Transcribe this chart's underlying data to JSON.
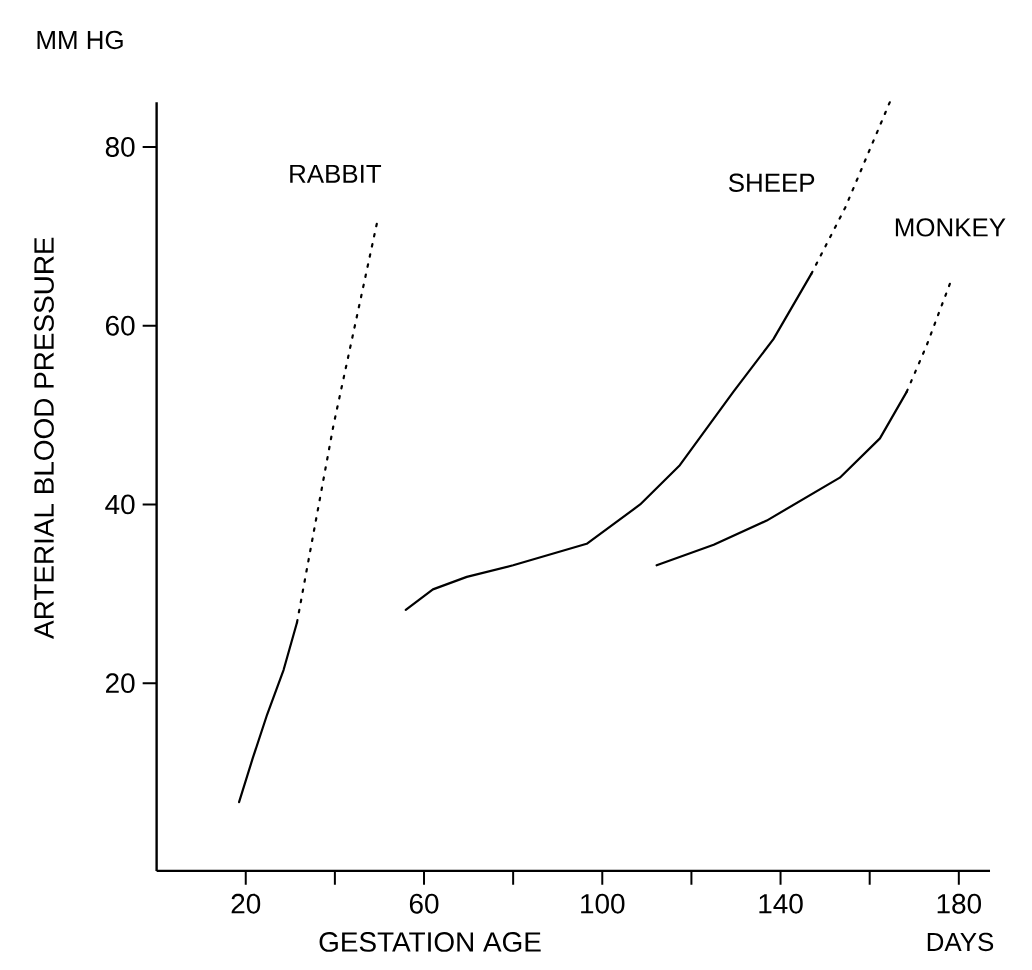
{
  "chart_data": {
    "type": "line",
    "xlabel": "GESTATION AGE",
    "ylabel": "ARTERIAL BLOOD PRESSURE",
    "annotations": [
      "MM HG",
      "DAYS"
    ],
    "xlim": [
      0,
      187
    ],
    "ylim": [
      -1,
      85
    ],
    "xticks": [
      {
        "value": 20,
        "label": "20"
      },
      {
        "value": 40,
        "label": null
      },
      {
        "value": 60,
        "label": "60"
      },
      {
        "value": 80,
        "label": null
      },
      {
        "value": 100,
        "label": "100"
      },
      {
        "value": 120,
        "label": null
      },
      {
        "value": 140,
        "label": "140"
      },
      {
        "value": 160,
        "label": null
      },
      {
        "value": 180,
        "label": "180"
      }
    ],
    "yticks": [
      20,
      40,
      60,
      80
    ],
    "grid": false,
    "series": [
      {
        "color": "#000000",
        "line_style": "solid",
        "x": [
          18.5,
          21.5,
          24.8,
          28.5,
          31.5
        ],
        "values": [
          6.7,
          11.5,
          16.5,
          21.5,
          26.8
        ]
      },
      {
        "name": "RABBIT",
        "color": "#000000",
        "line_style": "dotted",
        "x": [
          31.5,
          39.7,
          49.7
        ],
        "values": [
          26.8,
          48.9,
          72.1
        ]
      },
      {
        "color": "#000000",
        "line_style": "solid",
        "x": [
          55.9,
          62,
          69.6,
          80,
          96.5,
          108.5,
          117.4,
          129.4,
          138.4,
          146.9
        ],
        "values": [
          28.2,
          30.5,
          31.9,
          33.2,
          35.6,
          40.0,
          44.4,
          52.6,
          58.5,
          65.8
        ]
      },
      {
        "name": "SHEEP",
        "color": "#000000",
        "line_style": "dotted",
        "x": [
          146.9,
          154.5,
          164.5
        ],
        "values": [
          65.8,
          73.2,
          85
        ]
      },
      {
        "color": "#000000",
        "line_style": "solid",
        "x": [
          112.2,
          125,
          136.9,
          153.3,
          162.3,
          168.3
        ],
        "values": [
          33.2,
          35.5,
          38.2,
          43.0,
          47.4,
          52.6
        ]
      },
      {
        "name": "MONKEY",
        "color": "#000000",
        "line_style": "dotted",
        "x": [
          168.3,
          172.7,
          178.3
        ],
        "values": [
          52.6,
          57.7,
          65.1
        ]
      }
    ]
  }
}
